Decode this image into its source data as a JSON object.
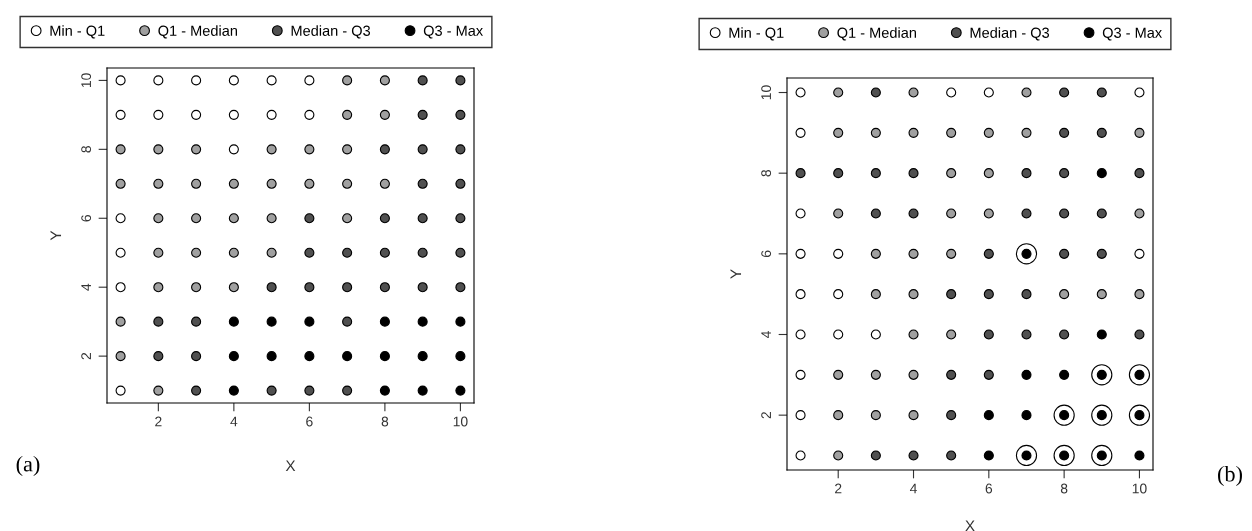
{
  "chart_data": [
    {
      "type": "scatter",
      "xlabel": "X",
      "ylabel": "Y",
      "xlim": [
        0.64,
        10.36
      ],
      "ylim": [
        0.64,
        10.36
      ],
      "xticks": [
        2,
        4,
        6,
        8,
        10
      ],
      "yticks": [
        2,
        4,
        6,
        8,
        10
      ],
      "grid": false,
      "legend": "top",
      "marker": "circle",
      "annotations": [
        "(a)"
      ],
      "series": [
        {
          "name": "Min - Q1",
          "color": "#ffffff",
          "x": [
            1,
            2,
            3,
            4,
            5,
            6,
            1,
            2,
            3,
            4,
            5,
            6,
            4,
            1,
            1,
            1,
            1
          ],
          "values": [
            10,
            10,
            10,
            10,
            10,
            10,
            9,
            9,
            9,
            9,
            9,
            9,
            8,
            6,
            5,
            4,
            1
          ]
        },
        {
          "name": "Q1 - Median",
          "color": "#a0a0a0",
          "x": [
            7,
            8,
            7,
            8,
            1,
            2,
            3,
            5,
            6,
            7,
            1,
            2,
            3,
            4,
            5,
            6,
            7,
            8,
            2,
            3,
            4,
            5,
            7,
            2,
            3,
            4,
            5,
            2,
            3,
            4,
            1,
            1,
            2
          ],
          "values": [
            10,
            10,
            9,
            9,
            8,
            8,
            8,
            8,
            8,
            8,
            7,
            7,
            7,
            7,
            7,
            7,
            7,
            7,
            6,
            6,
            6,
            6,
            6,
            5,
            5,
            5,
            5,
            4,
            4,
            4,
            3,
            2,
            1
          ]
        },
        {
          "name": "Median - Q3",
          "color": "#505050",
          "x": [
            9,
            10,
            9,
            10,
            8,
            9,
            10,
            9,
            10,
            6,
            8,
            9,
            10,
            6,
            7,
            8,
            9,
            10,
            5,
            6,
            7,
            8,
            9,
            10,
            2,
            3,
            7,
            2,
            3,
            3,
            5,
            6,
            7
          ],
          "values": [
            10,
            10,
            9,
            9,
            8,
            8,
            8,
            7,
            7,
            6,
            6,
            6,
            6,
            5,
            5,
            5,
            5,
            5,
            4,
            4,
            4,
            4,
            4,
            4,
            3,
            3,
            3,
            2,
            2,
            1,
            1,
            1,
            1
          ]
        },
        {
          "name": "Q3 - Max",
          "color": "#000000",
          "x": [
            4,
            5,
            6,
            8,
            9,
            10,
            4,
            5,
            6,
            7,
            8,
            9,
            10,
            4,
            8,
            9,
            10
          ],
          "values": [
            3,
            3,
            3,
            3,
            3,
            3,
            2,
            2,
            2,
            2,
            2,
            2,
            2,
            1,
            1,
            1,
            1
          ]
        }
      ]
    },
    {
      "type": "scatter",
      "xlabel": "X",
      "ylabel": "Y",
      "xlim": [
        0.64,
        10.36
      ],
      "ylim": [
        0.64,
        10.36
      ],
      "xticks": [
        2,
        4,
        6,
        8,
        10
      ],
      "yticks": [
        2,
        4,
        6,
        8,
        10
      ],
      "grid": false,
      "legend": "top",
      "marker": "circle",
      "annotations": [
        "(b)"
      ],
      "series": [
        {
          "color": "#ffffff",
          "x": [
            7,
            9,
            10,
            8,
            9,
            10,
            7,
            8,
            9
          ],
          "values": [
            6,
            3,
            3,
            2,
            2,
            2,
            1,
            1,
            1
          ],
          "sizes": [
            1,
            1,
            1,
            1,
            1,
            1,
            1,
            1,
            1
          ]
        },
        {
          "name": "Min - Q1",
          "color": "#ffffff",
          "x": [
            1,
            5,
            6,
            10,
            1,
            1,
            1,
            2,
            10,
            1,
            2,
            1,
            2,
            3,
            1,
            1,
            1
          ],
          "values": [
            10,
            10,
            10,
            10,
            9,
            7,
            6,
            6,
            6,
            5,
            5,
            4,
            4,
            4,
            3,
            2,
            1
          ]
        },
        {
          "name": "Q1 - Median",
          "color": "#a0a0a0",
          "x": [
            2,
            4,
            7,
            2,
            3,
            4,
            5,
            6,
            7,
            10,
            5,
            6,
            2,
            5,
            6,
            10,
            3,
            4,
            5,
            3,
            4,
            8,
            9,
            10,
            4,
            5,
            2,
            3,
            4,
            2,
            3,
            4,
            2
          ],
          "values": [
            10,
            10,
            10,
            9,
            9,
            9,
            9,
            9,
            9,
            9,
            8,
            8,
            7,
            7,
            7,
            7,
            6,
            6,
            6,
            5,
            5,
            5,
            5,
            5,
            4,
            4,
            3,
            3,
            3,
            2,
            2,
            2,
            1
          ]
        },
        {
          "name": "Median - Q3",
          "color": "#505050",
          "x": [
            3,
            8,
            9,
            8,
            9,
            1,
            2,
            3,
            4,
            7,
            8,
            10,
            3,
            4,
            7,
            8,
            9,
            6,
            8,
            9,
            5,
            6,
            7,
            6,
            7,
            8,
            10,
            5,
            6,
            5,
            3,
            4,
            5
          ],
          "values": [
            10,
            10,
            10,
            9,
            9,
            8,
            8,
            8,
            8,
            8,
            8,
            8,
            7,
            7,
            7,
            7,
            7,
            6,
            6,
            6,
            5,
            5,
            5,
            4,
            4,
            4,
            4,
            3,
            3,
            2,
            1,
            1,
            1
          ]
        },
        {
          "name": "Q3 - Max",
          "color": "#000000",
          "x": [
            9,
            7,
            9,
            7,
            8,
            9,
            10,
            6,
            7,
            8,
            9,
            10,
            6,
            7,
            8,
            9,
            10
          ],
          "values": [
            8,
            6,
            4,
            3,
            3,
            3,
            3,
            2,
            2,
            2,
            2,
            2,
            1,
            1,
            1,
            1,
            1
          ]
        }
      ]
    }
  ]
}
